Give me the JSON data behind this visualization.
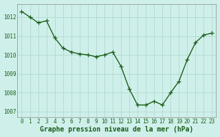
{
  "x": [
    0,
    1,
    2,
    3,
    4,
    5,
    6,
    7,
    8,
    9,
    10,
    11,
    12,
    13,
    14,
    15,
    16,
    17,
    18,
    19,
    20,
    21,
    22,
    23
  ],
  "y": [
    1012.3,
    1012.0,
    1011.7,
    1011.8,
    1010.9,
    1010.35,
    1010.15,
    1010.05,
    1010.0,
    1009.9,
    1010.0,
    1010.15,
    1009.4,
    1008.2,
    1007.35,
    1007.35,
    1007.55,
    1007.35,
    1008.0,
    1008.6,
    1009.75,
    1010.65,
    1011.05,
    1011.15
  ],
  "line_color": "#1a5c1a",
  "marker": "+",
  "marker_size": 4,
  "linewidth": 1.0,
  "bg_color": "#cff0ea",
  "grid_color": "#b0d8d0",
  "xlabel": "Graphe pression niveau de la mer (hPa)",
  "xlabel_fontsize": 7,
  "xlabel_fontweight": "bold",
  "ylabel_ticks": [
    1007,
    1008,
    1009,
    1010,
    1011,
    1012
  ],
  "xtick_labels": [
    "0",
    "1",
    "2",
    "3",
    "4",
    "5",
    "6",
    "7",
    "8",
    "9",
    "10",
    "11",
    "12",
    "13",
    "14",
    "15",
    "16",
    "17",
    "18",
    "19",
    "20",
    "21",
    "22",
    "23"
  ],
  "ylim": [
    1006.7,
    1012.7
  ],
  "xlim": [
    -0.5,
    23.5
  ],
  "tick_fontsize": 5.5,
  "label_color": "#1a5c1a",
  "spine_color": "#888888"
}
